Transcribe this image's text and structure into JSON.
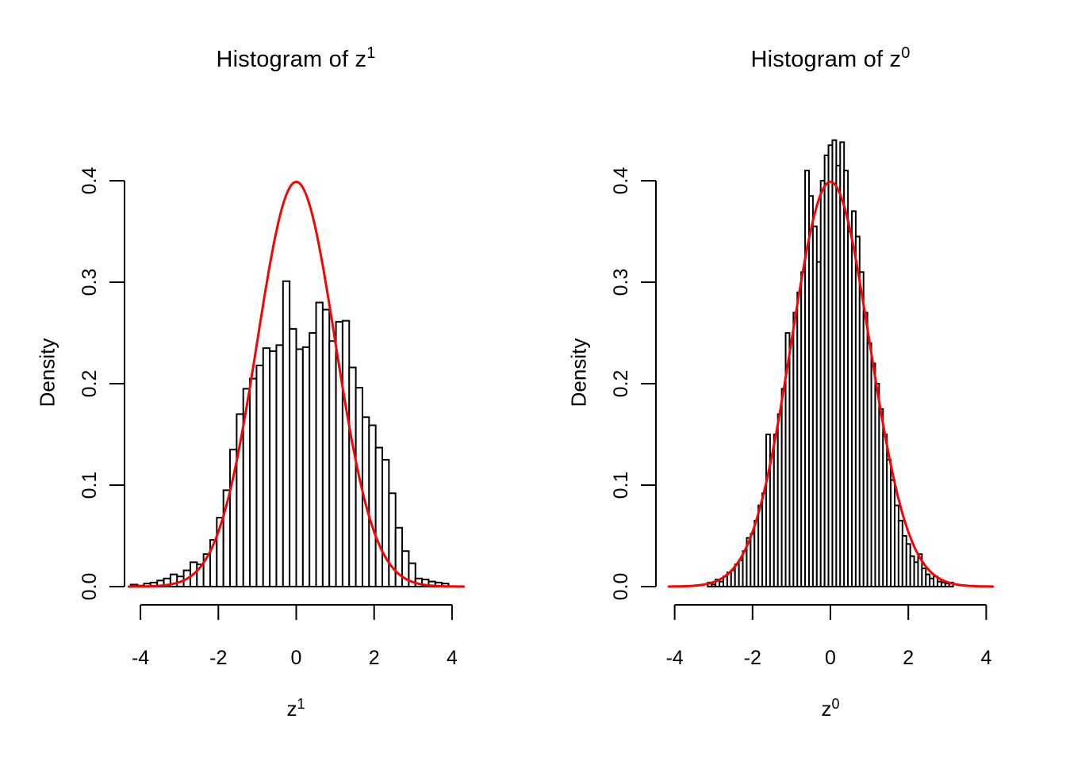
{
  "figure": {
    "background": "#ffffff",
    "text_color": "#000000"
  },
  "chart_data": [
    {
      "type": "bar",
      "name": "left-plot",
      "title": {
        "text": "Histogram of z",
        "sup": "1"
      },
      "xlabel": {
        "text": "z",
        "sup": "1"
      },
      "ylabel": "Density",
      "x_ticks": [
        "-4",
        "-2",
        "0",
        "2",
        "4"
      ],
      "x_tick_values": [
        -4,
        -2,
        0,
        2,
        4
      ],
      "y_ticks": [
        "0.0",
        "0.1",
        "0.2",
        "0.3",
        "0.4"
      ],
      "y_tick_values": [
        0.0,
        0.1,
        0.2,
        0.3,
        0.4
      ],
      "xlim": [
        -4.3,
        4.3
      ],
      "ylim": [
        0.0,
        0.4
      ],
      "grid": "off",
      "legend": "none",
      "bar_fill": "#ffffff",
      "bar_stroke": "#000000",
      "curve_color": "#ff0000",
      "curve": {
        "type": "normal-density",
        "mean": 0,
        "sd": 1,
        "x_range": [
          -4.3,
          4.3
        ]
      },
      "bins": {
        "start": -4.25,
        "width": 0.17,
        "heights": [
          0.002,
          0.001,
          0.003,
          0.004,
          0.006,
          0.008,
          0.012,
          0.01,
          0.016,
          0.024,
          0.022,
          0.032,
          0.046,
          0.068,
          0.095,
          0.135,
          0.17,
          0.195,
          0.205,
          0.218,
          0.235,
          0.232,
          0.238,
          0.301,
          0.254,
          0.234,
          0.236,
          0.25,
          0.28,
          0.273,
          0.242,
          0.261,
          0.262,
          0.216,
          0.196,
          0.167,
          0.159,
          0.137,
          0.125,
          0.092,
          0.058,
          0.035,
          0.023,
          0.008,
          0.007,
          0.005,
          0.004,
          0.003
        ]
      }
    },
    {
      "type": "bar",
      "name": "right-plot",
      "title": {
        "text": "Histogram of z",
        "sup": "0"
      },
      "xlabel": {
        "text": "z",
        "sup": "0"
      },
      "ylabel": "Density",
      "x_ticks": [
        "-4",
        "-2",
        "0",
        "2",
        "4"
      ],
      "x_tick_values": [
        -4,
        -2,
        0,
        2,
        4
      ],
      "y_ticks": [
        "0.0",
        "0.1",
        "0.2",
        "0.3",
        "0.4"
      ],
      "y_tick_values": [
        0.0,
        0.1,
        0.2,
        0.3,
        0.4
      ],
      "xlim": [
        -4.3,
        4.3
      ],
      "ylim": [
        0.0,
        0.4
      ],
      "grid": "off",
      "legend": "none",
      "bar_fill": "#ffffff",
      "bar_stroke": "#000000",
      "curve_color": "#ff0000",
      "curve": {
        "type": "normal-density",
        "mean": 0,
        "sd": 1,
        "x_range": [
          -4.15,
          4.2
        ]
      },
      "bins": {
        "start": -3.15,
        "width": 0.1,
        "heights": [
          0.004,
          0.002,
          0.007,
          0.005,
          0.01,
          0.014,
          0.016,
          0.022,
          0.026,
          0.035,
          0.048,
          0.052,
          0.065,
          0.08,
          0.092,
          0.15,
          0.13,
          0.15,
          0.17,
          0.195,
          0.25,
          0.24,
          0.27,
          0.29,
          0.31,
          0.41,
          0.385,
          0.355,
          0.32,
          0.4,
          0.425,
          0.435,
          0.44,
          0.415,
          0.438,
          0.41,
          0.35,
          0.37,
          0.345,
          0.31,
          0.27,
          0.24,
          0.22,
          0.2,
          0.175,
          0.15,
          0.125,
          0.105,
          0.08,
          0.065,
          0.05,
          0.042,
          0.03,
          0.024,
          0.032,
          0.018,
          0.012,
          0.008,
          0.01,
          0.005,
          0.004,
          0.003,
          0.004
        ]
      }
    }
  ]
}
